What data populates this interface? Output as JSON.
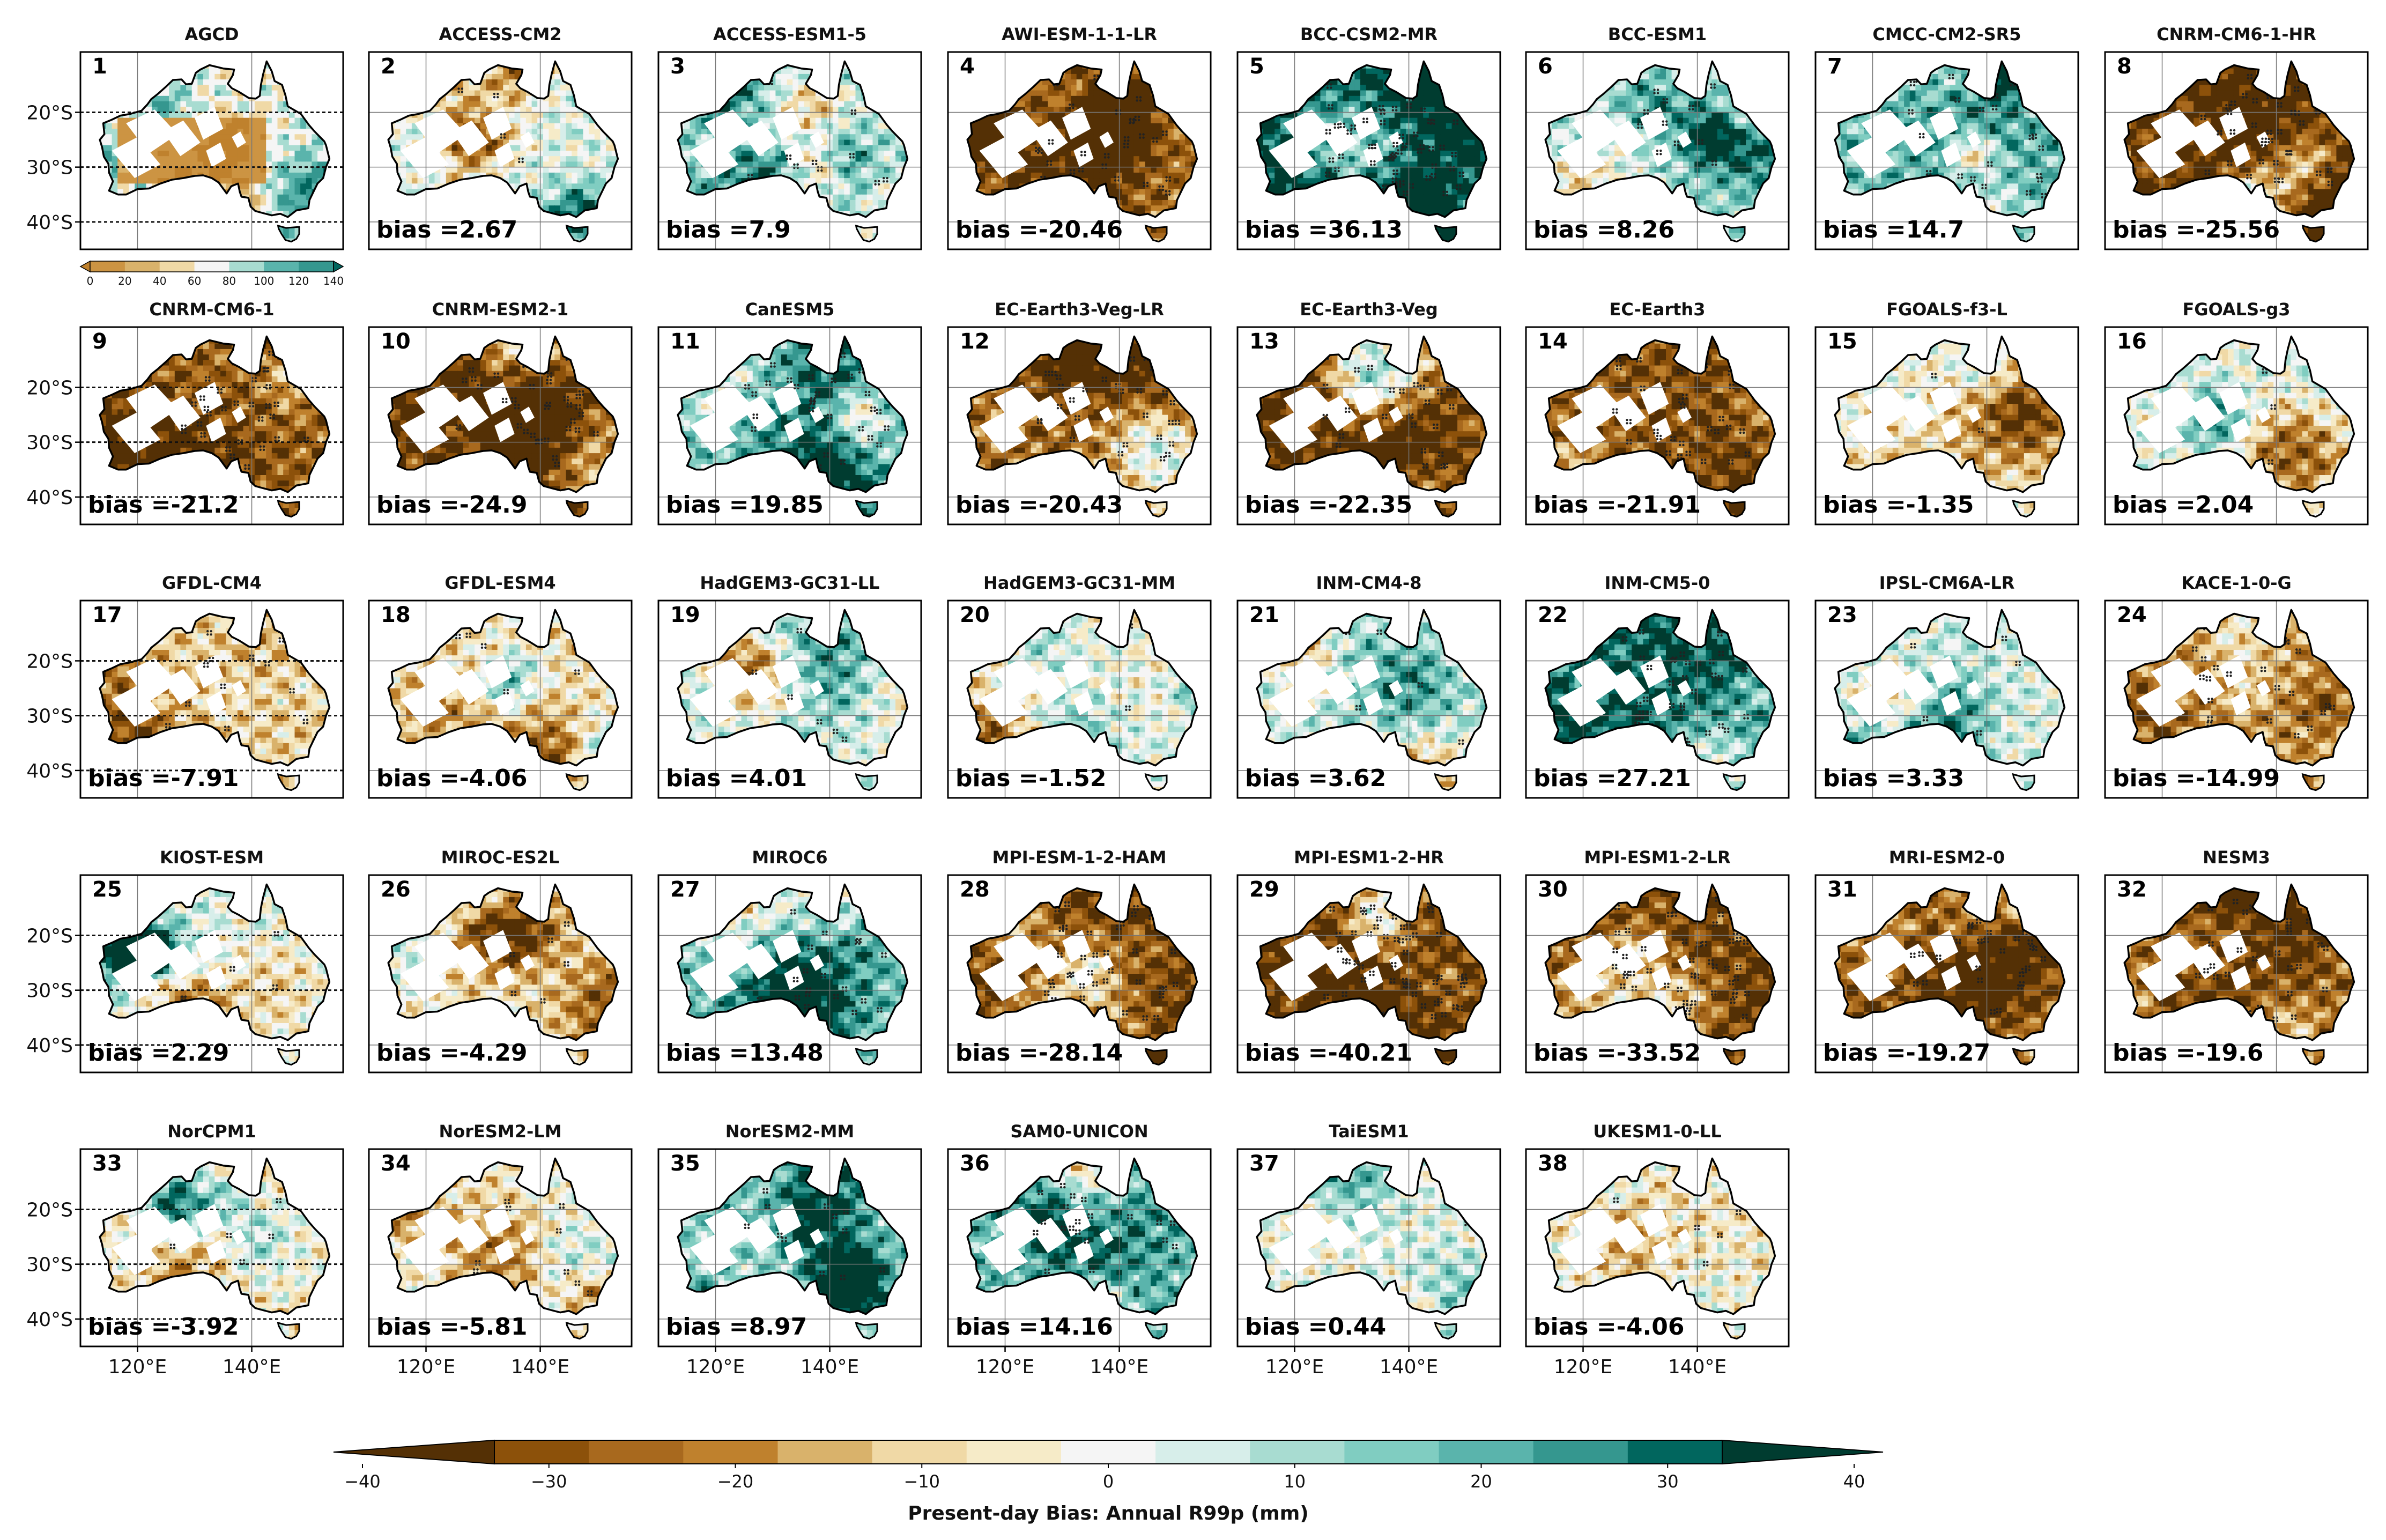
{
  "figure": {
    "colorbar_label": "Present-day Bias: Annual R99p (mm)",
    "colorbar_ticks": [
      "−40",
      "−30",
      "−20",
      "−10",
      "0",
      "10",
      "20",
      "30",
      "40"
    ],
    "colorbar_colors": [
      "#543005",
      "#8c510a",
      "#a8691e",
      "#bf812d",
      "#d9b26b",
      "#f0d9a6",
      "#f6ebc8",
      "#f5f5f5",
      "#d7eeea",
      "#a8dcd1",
      "#80cdc1",
      "#5ab4ac",
      "#35978f",
      "#01665e",
      "#003c30"
    ],
    "obs_colorbar_ticks": [
      "0",
      "20",
      "40",
      "60",
      "80",
      "100",
      "120",
      "140"
    ],
    "obs_colorbar_colors": [
      "#bf812d",
      "#cc9443",
      "#d9b26b",
      "#f0d9a6",
      "#f5f5f5",
      "#a8dcd1",
      "#5ab4ac",
      "#35978f",
      "#01665e"
    ],
    "lat_labels": [
      "20°S",
      "30°S",
      "40°S"
    ],
    "lon_labels": [
      "120°E",
      "140°E"
    ],
    "bias_prefix": "bias ="
  },
  "panels": [
    {
      "num": "1",
      "name": "AGCD",
      "obs": true,
      "bias": ""
    },
    {
      "num": "2",
      "name": "ACCESS-CM2",
      "bias": "2.67"
    },
    {
      "num": "3",
      "name": "ACCESS-ESM1-5",
      "bias": "7.9"
    },
    {
      "num": "4",
      "name": "AWI-ESM-1-1-LR",
      "bias": "-20.46"
    },
    {
      "num": "5",
      "name": "BCC-CSM2-MR",
      "bias": "36.13"
    },
    {
      "num": "6",
      "name": "BCC-ESM1",
      "bias": "8.26"
    },
    {
      "num": "7",
      "name": "CMCC-CM2-SR5",
      "bias": "14.7"
    },
    {
      "num": "8",
      "name": "CNRM-CM6-1-HR",
      "bias": "-25.56"
    },
    {
      "num": "9",
      "name": "CNRM-CM6-1",
      "bias": "-21.2"
    },
    {
      "num": "10",
      "name": "CNRM-ESM2-1",
      "bias": "-24.9"
    },
    {
      "num": "11",
      "name": "CanESM5",
      "bias": "19.85"
    },
    {
      "num": "12",
      "name": "EC-Earth3-Veg-LR",
      "bias": "-20.43"
    },
    {
      "num": "13",
      "name": "EC-Earth3-Veg",
      "bias": "-22.35"
    },
    {
      "num": "14",
      "name": "EC-Earth3",
      "bias": "-21.91"
    },
    {
      "num": "15",
      "name": "FGOALS-f3-L",
      "bias": "-1.35"
    },
    {
      "num": "16",
      "name": "FGOALS-g3",
      "bias": "2.04"
    },
    {
      "num": "17",
      "name": "GFDL-CM4",
      "bias": "-7.91"
    },
    {
      "num": "18",
      "name": "GFDL-ESM4",
      "bias": "-4.06"
    },
    {
      "num": "19",
      "name": "HadGEM3-GC31-LL",
      "bias": "4.01"
    },
    {
      "num": "20",
      "name": "HadGEM3-GC31-MM",
      "bias": "-1.52"
    },
    {
      "num": "21",
      "name": "INM-CM4-8",
      "bias": "3.62"
    },
    {
      "num": "22",
      "name": "INM-CM5-0",
      "bias": "27.21"
    },
    {
      "num": "23",
      "name": "IPSL-CM6A-LR",
      "bias": "3.33"
    },
    {
      "num": "24",
      "name": "KACE-1-0-G",
      "bias": "-14.99"
    },
    {
      "num": "25",
      "name": "KIOST-ESM",
      "bias": "2.29"
    },
    {
      "num": "26",
      "name": "MIROC-ES2L",
      "bias": "-4.29"
    },
    {
      "num": "27",
      "name": "MIROC6",
      "bias": "13.48"
    },
    {
      "num": "28",
      "name": "MPI-ESM-1-2-HAM",
      "bias": "-28.14"
    },
    {
      "num": "29",
      "name": "MPI-ESM1-2-HR",
      "bias": "-40.21"
    },
    {
      "num": "30",
      "name": "MPI-ESM1-2-LR",
      "bias": "-33.52"
    },
    {
      "num": "31",
      "name": "MRI-ESM2-0",
      "bias": "-19.27"
    },
    {
      "num": "32",
      "name": "NESM3",
      "bias": "-19.6"
    },
    {
      "num": "33",
      "name": "NorCPM1",
      "bias": "-3.92"
    },
    {
      "num": "34",
      "name": "NorESM2-LM",
      "bias": "-5.81"
    },
    {
      "num": "35",
      "name": "NorESM2-MM",
      "bias": "8.97"
    },
    {
      "num": "36",
      "name": "SAM0-UNICON",
      "bias": "14.16"
    },
    {
      "num": "37",
      "name": "TaiESM1",
      "bias": "0.44"
    },
    {
      "num": "38",
      "name": "UKESM1-0-LL",
      "bias": "-4.06"
    }
  ]
}
